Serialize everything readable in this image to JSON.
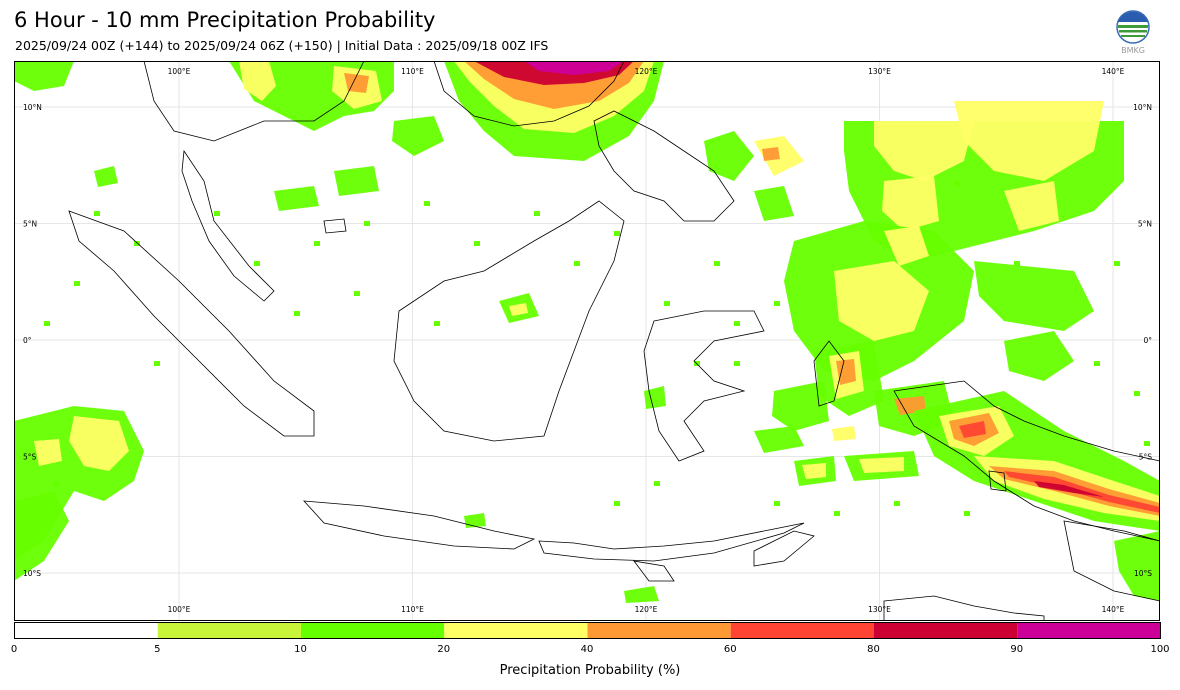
{
  "title": "6 Hour - 10 mm Precipitation Probability",
  "subtitle": "2025/09/24 00Z (+144) to 2025/09/24 06Z (+150) | Initial Data : 2025/09/18 00Z IFS",
  "logo": {
    "text": "BMKG",
    "icon": "bmkg-globe-logo-icon"
  },
  "map": {
    "lon_range": [
      93,
      142
    ],
    "lat_range": [
      -12,
      12
    ],
    "lon_labels": [
      {
        "lon": 100,
        "text": "100°E"
      },
      {
        "lon": 110,
        "text": "110°E"
      },
      {
        "lon": 120,
        "text": "120°E"
      },
      {
        "lon": 130,
        "text": "130°E"
      },
      {
        "lon": 140,
        "text": "140°E"
      }
    ],
    "lat_labels": [
      {
        "lat": 10,
        "text": "10°N"
      },
      {
        "lat": 5,
        "text": "5°N"
      },
      {
        "lat": 0,
        "text": "0°"
      },
      {
        "lat": -5,
        "text": "5°S"
      },
      {
        "lat": -10,
        "text": "10°S"
      }
    ],
    "grid": true
  },
  "colorbar": {
    "label": "Precipitation Probability (%)",
    "ticks": [
      "0",
      "5",
      "10",
      "20",
      "40",
      "60",
      "80",
      "90",
      "100"
    ],
    "bins": [
      {
        "from": 0,
        "to": 5,
        "color": "#ffffff"
      },
      {
        "from": 5,
        "to": 10,
        "color": "#c8f53a"
      },
      {
        "from": 10,
        "to": 20,
        "color": "#66ff00"
      },
      {
        "from": 20,
        "to": 40,
        "color": "#ffff66"
      },
      {
        "from": 40,
        "to": 60,
        "color": "#ff9933"
      },
      {
        "from": 60,
        "to": 80,
        "color": "#ff4433"
      },
      {
        "from": 80,
        "to": 90,
        "color": "#cc0033"
      },
      {
        "from": 90,
        "to": 100,
        "color": "#cc0099"
      }
    ]
  }
}
